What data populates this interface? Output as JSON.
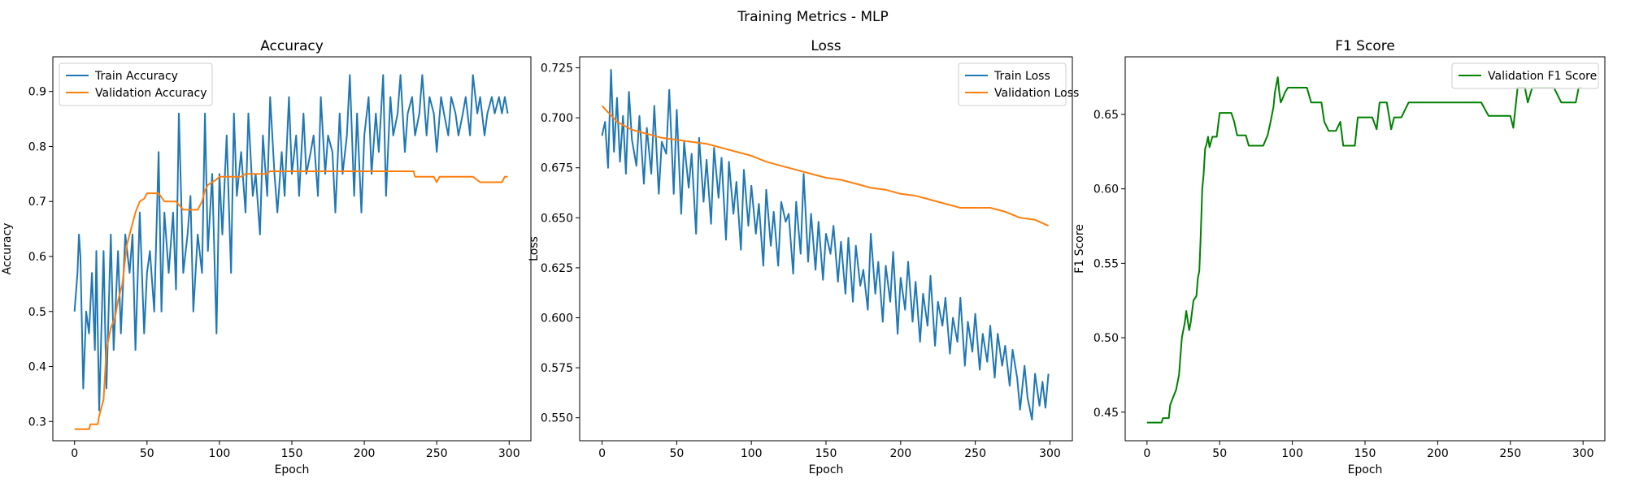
{
  "figure": {
    "title": "Training Metrics - MLP"
  },
  "colors": {
    "train": "#1f77b4",
    "validation": "#ff7f0e",
    "f1": "#008000"
  },
  "chart_data": [
    {
      "type": "line",
      "title": "Accuracy",
      "xlabel": "Epoch",
      "ylabel": "Accuracy",
      "xlim": [
        -15,
        315
      ],
      "ylim": [
        0.265,
        0.963
      ],
      "xticks": [
        0,
        50,
        100,
        150,
        200,
        250,
        300
      ],
      "yticks": [
        0.3,
        0.4,
        0.5,
        0.6,
        0.7,
        0.8,
        0.9
      ],
      "ytick_labels": [
        "0.3",
        "0.4",
        "0.5",
        "0.6",
        "0.7",
        "0.8",
        "0.9"
      ],
      "legend_position": "upper-left",
      "series": [
        {
          "name": "Train Accuracy",
          "color": "#1f77b4",
          "x": [
            0,
            2,
            3,
            4,
            6,
            8,
            10,
            12,
            14,
            15,
            17,
            20,
            22,
            25,
            27,
            30,
            32,
            35,
            38,
            40,
            42,
            45,
            48,
            50,
            52,
            55,
            58,
            60,
            62,
            65,
            68,
            70,
            72,
            75,
            78,
            80,
            82,
            85,
            88,
            90,
            92,
            95,
            98,
            100,
            102,
            105,
            108,
            110,
            112,
            115,
            118,
            120,
            123,
            125,
            128,
            130,
            133,
            135,
            138,
            140,
            143,
            145,
            148,
            150,
            153,
            155,
            158,
            160,
            163,
            165,
            168,
            170,
            173,
            175,
            178,
            180,
            183,
            185,
            188,
            190,
            193,
            195,
            198,
            200,
            203,
            205,
            208,
            210,
            213,
            215,
            218,
            220,
            223,
            225,
            228,
            230,
            233,
            235,
            238,
            240,
            243,
            245,
            248,
            250,
            253,
            255,
            258,
            260,
            263,
            265,
            268,
            270,
            273,
            275,
            278,
            280,
            283,
            285,
            288,
            290,
            293,
            295,
            297,
            299
          ],
          "values": [
            0.5,
            0.57,
            0.64,
            0.6,
            0.36,
            0.5,
            0.46,
            0.57,
            0.43,
            0.61,
            0.32,
            0.61,
            0.36,
            0.64,
            0.43,
            0.61,
            0.46,
            0.64,
            0.57,
            0.64,
            0.43,
            0.68,
            0.46,
            0.57,
            0.61,
            0.5,
            0.79,
            0.5,
            0.68,
            0.57,
            0.68,
            0.54,
            0.86,
            0.57,
            0.64,
            0.71,
            0.5,
            0.64,
            0.57,
            0.86,
            0.61,
            0.75,
            0.46,
            0.75,
            0.64,
            0.82,
            0.57,
            0.86,
            0.71,
            0.79,
            0.68,
            0.86,
            0.71,
            0.75,
            0.64,
            0.82,
            0.71,
            0.89,
            0.75,
            0.68,
            0.79,
            0.71,
            0.89,
            0.75,
            0.82,
            0.71,
            0.86,
            0.75,
            0.79,
            0.82,
            0.71,
            0.89,
            0.75,
            0.82,
            0.79,
            0.68,
            0.86,
            0.75,
            0.82,
            0.93,
            0.71,
            0.86,
            0.68,
            0.82,
            0.89,
            0.75,
            0.86,
            0.79,
            0.93,
            0.71,
            0.89,
            0.82,
            0.86,
            0.93,
            0.79,
            0.86,
            0.89,
            0.82,
            0.86,
            0.93,
            0.82,
            0.89,
            0.86,
            0.79,
            0.89,
            0.86,
            0.82,
            0.89,
            0.86,
            0.82,
            0.86,
            0.89,
            0.82,
            0.93,
            0.86,
            0.89,
            0.82,
            0.86,
            0.89,
            0.86,
            0.89,
            0.86,
            0.89,
            0.86
          ]
        },
        {
          "name": "Validation Accuracy",
          "color": "#ff7f0e",
          "x": [
            0,
            10,
            11,
            16,
            17,
            20,
            22,
            25,
            28,
            30,
            33,
            36,
            39,
            42,
            45,
            48,
            50,
            52,
            58,
            62,
            70,
            75,
            85,
            88,
            90,
            92,
            95,
            98,
            100,
            110,
            115,
            118,
            122,
            132,
            135,
            150,
            160,
            165,
            175,
            180,
            190,
            200,
            210,
            220,
            234,
            235,
            248,
            250,
            252,
            255,
            258,
            262,
            275,
            280,
            295,
            297,
            299
          ],
          "values": [
            0.286,
            0.286,
            0.295,
            0.295,
            0.31,
            0.34,
            0.43,
            0.47,
            0.49,
            0.52,
            0.55,
            0.62,
            0.65,
            0.68,
            0.7,
            0.705,
            0.715,
            0.715,
            0.715,
            0.7,
            0.7,
            0.685,
            0.685,
            0.7,
            0.72,
            0.73,
            0.735,
            0.74,
            0.745,
            0.745,
            0.745,
            0.75,
            0.75,
            0.75,
            0.755,
            0.755,
            0.755,
            0.755,
            0.755,
            0.755,
            0.755,
            0.755,
            0.755,
            0.755,
            0.755,
            0.745,
            0.745,
            0.735,
            0.745,
            0.745,
            0.745,
            0.745,
            0.745,
            0.735,
            0.735,
            0.745,
            0.745
          ]
        }
      ]
    },
    {
      "type": "line",
      "title": "Loss",
      "xlabel": "Epoch",
      "ylabel": "Loss",
      "xlim": [
        -15,
        315
      ],
      "ylim": [
        0.5385,
        0.7305
      ],
      "xticks": [
        0,
        50,
        100,
        150,
        200,
        250,
        300
      ],
      "yticks": [
        0.55,
        0.575,
        0.6,
        0.625,
        0.65,
        0.675,
        0.7,
        0.725
      ],
      "ytick_labels": [
        "0.550",
        "0.575",
        "0.600",
        "0.625",
        "0.650",
        "0.675",
        "0.700",
        "0.725"
      ],
      "legend_position": "upper-right",
      "series": [
        {
          "name": "Train Loss",
          "color": "#1f77b4",
          "x": [
            0,
            2,
            4,
            6,
            8,
            10,
            12,
            14,
            16,
            18,
            20,
            23,
            25,
            28,
            30,
            33,
            35,
            38,
            40,
            43,
            45,
            48,
            50,
            53,
            55,
            58,
            60,
            63,
            65,
            68,
            70,
            73,
            75,
            78,
            80,
            83,
            85,
            88,
            90,
            93,
            95,
            98,
            100,
            103,
            105,
            108,
            110,
            113,
            115,
            118,
            120,
            123,
            125,
            128,
            130,
            133,
            135,
            138,
            140,
            143,
            145,
            148,
            150,
            153,
            155,
            158,
            160,
            163,
            165,
            168,
            170,
            173,
            175,
            178,
            180,
            183,
            185,
            188,
            190,
            193,
            195,
            198,
            200,
            203,
            205,
            208,
            210,
            213,
            215,
            218,
            220,
            223,
            225,
            228,
            230,
            233,
            235,
            238,
            240,
            243,
            245,
            248,
            250,
            253,
            255,
            258,
            260,
            263,
            265,
            268,
            270,
            273,
            275,
            278,
            280,
            283,
            285,
            288,
            290,
            293,
            295,
            297,
            299
          ],
          "values": [
            0.691,
            0.698,
            0.675,
            0.724,
            0.683,
            0.71,
            0.678,
            0.701,
            0.672,
            0.713,
            0.689,
            0.676,
            0.701,
            0.667,
            0.695,
            0.672,
            0.706,
            0.662,
            0.688,
            0.682,
            0.714,
            0.662,
            0.704,
            0.652,
            0.688,
            0.665,
            0.682,
            0.642,
            0.69,
            0.658,
            0.679,
            0.647,
            0.685,
            0.66,
            0.68,
            0.639,
            0.678,
            0.652,
            0.668,
            0.634,
            0.674,
            0.646,
            0.666,
            0.642,
            0.657,
            0.626,
            0.664,
            0.636,
            0.653,
            0.626,
            0.658,
            0.648,
            0.652,
            0.622,
            0.658,
            0.632,
            0.672,
            0.628,
            0.652,
            0.624,
            0.648,
            0.619,
            0.642,
            0.632,
            0.646,
            0.618,
            0.638,
            0.612,
            0.64,
            0.608,
            0.636,
            0.616,
            0.624,
            0.604,
            0.642,
            0.612,
            0.628,
            0.598,
            0.626,
            0.608,
            0.633,
            0.592,
            0.62,
            0.604,
            0.628,
            0.598,
            0.618,
            0.588,
            0.612,
            0.596,
            0.621,
            0.586,
            0.608,
            0.596,
            0.61,
            0.582,
            0.6,
            0.588,
            0.61,
            0.576,
            0.598,
            0.583,
            0.602,
            0.574,
            0.592,
            0.578,
            0.596,
            0.57,
            0.592,
            0.576,
            0.586,
            0.566,
            0.584,
            0.57,
            0.554,
            0.576,
            0.56,
            0.549,
            0.572,
            0.556,
            0.568,
            0.555,
            0.572
          ]
        },
        {
          "name": "Validation Loss",
          "color": "#ff7f0e",
          "x": [
            0,
            5,
            10,
            15,
            20,
            25,
            30,
            40,
            50,
            60,
            70,
            75,
            80,
            90,
            100,
            110,
            120,
            130,
            140,
            150,
            160,
            170,
            180,
            190,
            200,
            210,
            220,
            230,
            240,
            250,
            260,
            270,
            280,
            290,
            299
          ],
          "values": [
            0.706,
            0.702,
            0.698,
            0.696,
            0.694,
            0.693,
            0.692,
            0.69,
            0.689,
            0.688,
            0.687,
            0.686,
            0.685,
            0.683,
            0.681,
            0.678,
            0.676,
            0.674,
            0.672,
            0.67,
            0.669,
            0.667,
            0.665,
            0.664,
            0.662,
            0.661,
            0.659,
            0.657,
            0.655,
            0.655,
            0.655,
            0.653,
            0.65,
            0.649,
            0.646
          ]
        }
      ]
    },
    {
      "type": "line",
      "title": "F1 Score",
      "xlabel": "Epoch",
      "ylabel": "F1 Score",
      "xlim": [
        -15,
        315
      ],
      "ylim": [
        0.4308,
        0.6887
      ],
      "xticks": [
        0,
        50,
        100,
        150,
        200,
        250,
        300
      ],
      "yticks": [
        0.45,
        0.5,
        0.55,
        0.6,
        0.65
      ],
      "ytick_labels": [
        "0.45",
        "0.50",
        "0.55",
        "0.60",
        "0.65"
      ],
      "legend_position": "upper-right",
      "series": [
        {
          "name": "Validation F1 Score",
          "color": "#008000",
          "x": [
            0,
            10,
            11,
            15,
            16,
            18,
            20,
            22,
            24,
            26,
            27,
            29,
            30,
            32,
            34,
            35,
            36,
            37,
            38,
            39,
            40,
            41,
            42,
            43,
            45,
            47,
            48,
            50,
            52,
            55,
            58,
            60,
            62,
            65,
            68,
            70,
            72,
            75,
            80,
            83,
            85,
            87,
            88,
            90,
            91,
            92,
            93,
            95,
            97,
            100,
            105,
            110,
            113,
            115,
            118,
            120,
            122,
            125,
            128,
            130,
            133,
            135,
            138,
            140,
            143,
            145,
            148,
            150,
            155,
            158,
            160,
            163,
            165,
            168,
            170,
            175,
            180,
            185,
            190,
            200,
            210,
            220,
            230,
            235,
            240,
            245,
            250,
            252,
            255,
            258,
            260,
            262,
            265,
            268,
            272,
            275,
            280,
            285,
            290,
            295,
            297,
            299
          ],
          "values": [
            0.443,
            0.443,
            0.446,
            0.446,
            0.455,
            0.46,
            0.465,
            0.475,
            0.5,
            0.51,
            0.518,
            0.505,
            0.51,
            0.525,
            0.528,
            0.54,
            0.545,
            0.57,
            0.6,
            0.61,
            0.627,
            0.63,
            0.635,
            0.628,
            0.635,
            0.635,
            0.635,
            0.651,
            0.651,
            0.651,
            0.651,
            0.645,
            0.636,
            0.636,
            0.636,
            0.629,
            0.629,
            0.629,
            0.629,
            0.636,
            0.645,
            0.655,
            0.665,
            0.675,
            0.665,
            0.658,
            0.66,
            0.665,
            0.668,
            0.668,
            0.668,
            0.668,
            0.658,
            0.658,
            0.658,
            0.658,
            0.645,
            0.639,
            0.639,
            0.639,
            0.645,
            0.629,
            0.629,
            0.629,
            0.629,
            0.648,
            0.648,
            0.648,
            0.648,
            0.64,
            0.658,
            0.658,
            0.658,
            0.64,
            0.648,
            0.648,
            0.658,
            0.658,
            0.658,
            0.658,
            0.658,
            0.658,
            0.658,
            0.649,
            0.649,
            0.649,
            0.649,
            0.641,
            0.668,
            0.668,
            0.668,
            0.658,
            0.668,
            0.668,
            0.668,
            0.668,
            0.668,
            0.658,
            0.658,
            0.658,
            0.668,
            0.668
          ]
        }
      ]
    }
  ]
}
